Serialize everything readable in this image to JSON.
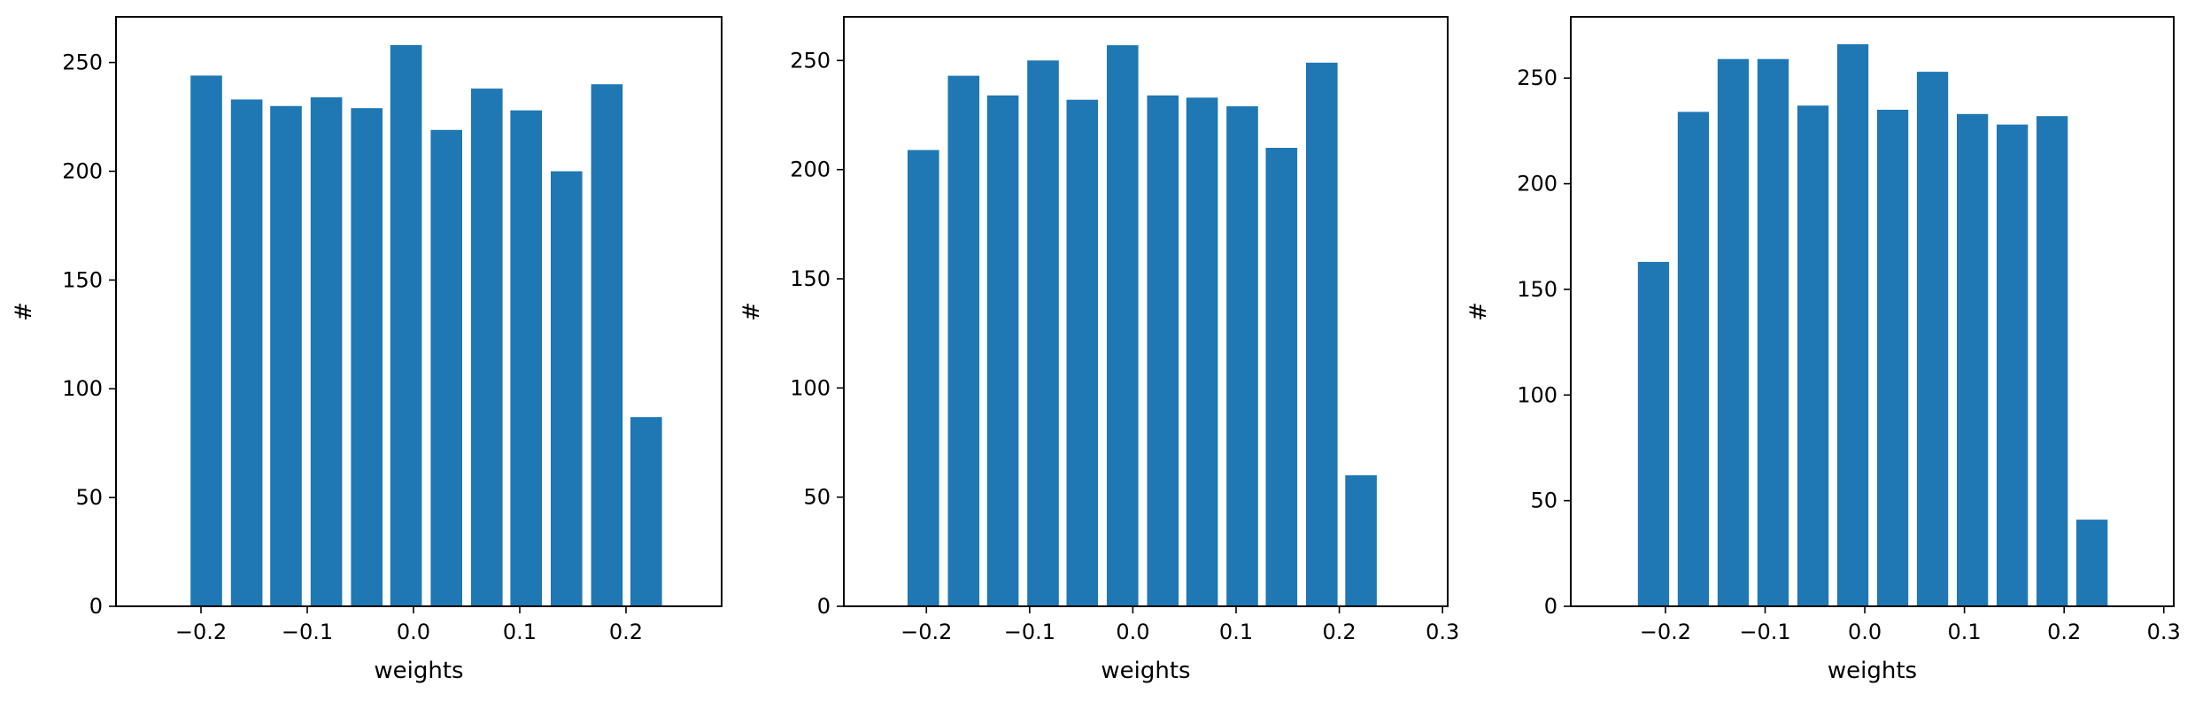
{
  "chart_data": [
    {
      "type": "bar",
      "title": "",
      "xlabel": "weights",
      "ylabel": "#",
      "xlim": [
        -0.28,
        0.29
      ],
      "ylim": [
        0,
        271
      ],
      "xticks": [
        -0.2,
        -0.1,
        0.0,
        0.1,
        0.2
      ],
      "xtick_labels": [
        "−0.2",
        "−0.1",
        "0.0",
        "0.1",
        "0.2"
      ],
      "yticks": [
        0,
        50,
        100,
        150,
        200,
        250
      ],
      "ytick_labels": [
        "0",
        "50",
        "100",
        "150",
        "200",
        "250"
      ],
      "bar_width": 0.0297,
      "x": [
        -0.195,
        -0.157,
        -0.12,
        -0.082,
        -0.044,
        -0.007,
        0.031,
        0.069,
        0.106,
        0.144,
        0.182,
        0.219
      ],
      "values": [
        244,
        233,
        230,
        234,
        229,
        258,
        219,
        238,
        228,
        200,
        240,
        87
      ],
      "color": "#1f77b4",
      "grid": false
    },
    {
      "type": "bar",
      "title": "",
      "xlabel": "weights",
      "ylabel": "#",
      "xlim": [
        -0.28,
        0.305
      ],
      "ylim": [
        0,
        270
      ],
      "xticks": [
        -0.2,
        -0.1,
        0.0,
        0.1,
        0.2,
        0.3
      ],
      "xtick_labels": [
        "−0.2",
        "−0.1",
        "0.0",
        "0.1",
        "0.2",
        "0.3"
      ],
      "yticks": [
        0,
        50,
        100,
        150,
        200,
        250
      ],
      "ytick_labels": [
        "0",
        "50",
        "100",
        "150",
        "200",
        "250"
      ],
      "bar_width": 0.0305,
      "x": [
        -0.203,
        -0.164,
        -0.126,
        -0.087,
        -0.049,
        -0.01,
        0.029,
        0.067,
        0.106,
        0.144,
        0.183,
        0.221
      ],
      "values": [
        209,
        243,
        234,
        250,
        232,
        257,
        234,
        233,
        229,
        210,
        249,
        60
      ],
      "color": "#1f77b4",
      "grid": false
    },
    {
      "type": "bar",
      "title": "",
      "xlabel": "weights",
      "ylabel": "#",
      "xlim": [
        -0.295,
        0.31
      ],
      "ylim": [
        0,
        279
      ],
      "xticks": [
        -0.2,
        -0.1,
        0.0,
        0.1,
        0.2,
        0.3
      ],
      "xtick_labels": [
        "−0.2",
        "−0.1",
        "0.0",
        "0.1",
        "0.2",
        "0.3"
      ],
      "yticks": [
        0,
        50,
        100,
        150,
        200,
        250
      ],
      "ytick_labels": [
        "0",
        "50",
        "100",
        "150",
        "200",
        "250"
      ],
      "bar_width": 0.0314,
      "x": [
        -0.212,
        -0.172,
        -0.132,
        -0.092,
        -0.052,
        -0.012,
        0.028,
        0.068,
        0.108,
        0.148,
        0.188,
        0.228
      ],
      "values": [
        163,
        234,
        259,
        259,
        237,
        266,
        235,
        253,
        233,
        228,
        232,
        41
      ],
      "color": "#1f77b4",
      "grid": false
    }
  ]
}
